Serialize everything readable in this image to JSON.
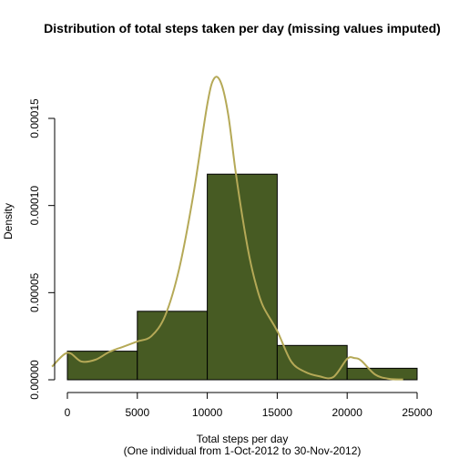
{
  "chart_data": {
    "type": "bar",
    "subtype": "histogram-with-density",
    "title": "Distribution of total steps taken per day (missing values imputed)",
    "xlabel": "Total steps per day",
    "xlabel_sub": "(One individual from 1-Oct-2012 to 30-Nov-2012)",
    "ylabel": "Density",
    "xlim": [
      0,
      25000
    ],
    "ylim": [
      0,
      0.00015
    ],
    "x_ticks": [
      0,
      5000,
      10000,
      15000,
      20000,
      25000
    ],
    "x_tick_labels": [
      "0",
      "5000",
      "10000",
      "15000",
      "20000",
      "25000"
    ],
    "y_ticks": [
      0,
      5e-05,
      0.0001,
      0.00015
    ],
    "y_tick_labels": [
      "0.00000",
      "0.00005",
      "0.00010",
      "0.00015"
    ],
    "bins": [
      {
        "from": 0,
        "to": 5000,
        "density": 1.64e-05
      },
      {
        "from": 5000,
        "to": 10000,
        "density": 3.93e-05
      },
      {
        "from": 10000,
        "to": 15000,
        "density": 0.000118
      },
      {
        "from": 15000,
        "to": 20000,
        "density": 1.97e-05
      },
      {
        "from": 20000,
        "to": 25000,
        "density": 6.6e-06
      }
    ],
    "density_curve": {
      "x": [
        -1100,
        0,
        1000,
        2000,
        3000,
        4000,
        5000,
        6000,
        7000,
        8000,
        9000,
        10000,
        10500,
        11000,
        11500,
        12000,
        12500,
        13000,
        13500,
        14000,
        15000,
        16000,
        17000,
        18000,
        19000,
        20000,
        20500,
        21000,
        22000,
        23000,
        24000
      ],
      "y": [
        7.5e-06,
        1.55e-05,
        1.05e-05,
        1.15e-05,
        1.6e-05,
        1.9e-05,
        2.2e-05,
        2.5e-05,
        3.7e-05,
        6.4e-05,
        0.000106,
        0.000158,
        0.000173,
        0.00017,
        0.000152,
        0.000121,
        9.4e-05,
        7.1e-05,
        5.4e-05,
        4.2e-05,
        2.8e-05,
        1.05e-05,
        4.5e-06,
        2e-06,
        1.5e-06,
        1.2e-05,
        1.25e-05,
        1.1e-05,
        3e-06,
        5e-07,
        2e-07
      ]
    },
    "colors": {
      "bar_fill": "#475b23",
      "bar_border": "#000000",
      "density_line": "#b5a957"
    },
    "grid": false,
    "legend": "none"
  }
}
